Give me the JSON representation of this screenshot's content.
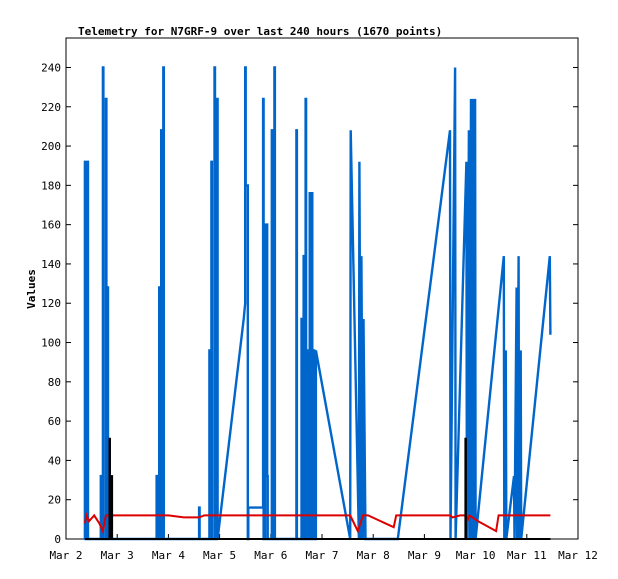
{
  "chart_data": {
    "type": "line",
    "title": "Telemetry for N7GRF-9 over last 240 hours (1670 points)",
    "xlabel": "",
    "ylabel": "Values",
    "x_unit": "day of March",
    "xlim": [
      2,
      12
    ],
    "ylim": [
      0,
      255
    ],
    "xticks": [
      {
        "v": 2,
        "label": "Mar 2"
      },
      {
        "v": 3,
        "label": "Mar 3"
      },
      {
        "v": 4,
        "label": "Mar 4"
      },
      {
        "v": 5,
        "label": "Mar 5"
      },
      {
        "v": 6,
        "label": "Mar 6"
      },
      {
        "v": 7,
        "label": "Mar 7"
      },
      {
        "v": 8,
        "label": "Mar 8"
      },
      {
        "v": 9,
        "label": "Mar 9"
      },
      {
        "v": 10,
        "label": "Mar 10"
      },
      {
        "v": 11,
        "label": "Mar 11"
      },
      {
        "v": 12,
        "label": "Mar 12"
      }
    ],
    "yticks": [
      0,
      20,
      40,
      60,
      80,
      100,
      120,
      140,
      160,
      180,
      200,
      220,
      240
    ],
    "grid": false,
    "legend": "none",
    "colors": {
      "series_blue": "#0066cc",
      "series_red": "#dd0000",
      "series_black": "#000000"
    },
    "series": [
      {
        "color": "#0066cc",
        "x": [
          2.37,
          2.37,
          2.38,
          2.38,
          2.42,
          2.42,
          2.43,
          2.43,
          2.68,
          2.68,
          2.69,
          2.69,
          2.72,
          2.72,
          2.73,
          2.73,
          2.78,
          2.78,
          2.79,
          2.79,
          2.81,
          2.81,
          2.82,
          2.82,
          3.77,
          3.77,
          3.78,
          3.78,
          3.82,
          3.82,
          3.83,
          3.83,
          3.86,
          3.86,
          3.87,
          3.87,
          3.9,
          3.9,
          3.91,
          3.91,
          4.6,
          4.6,
          4.61,
          4.61,
          4.8,
          4.8,
          4.81,
          4.81,
          4.84,
          4.84,
          4.85,
          4.85,
          4.9,
          4.9,
          4.91,
          4.91,
          4.95,
          4.95,
          4.96,
          4.96,
          5.47,
          5.5,
          5.5,
          5.51,
          5.51,
          5.55,
          5.55,
          5.56,
          5.56,
          5.85,
          5.85,
          5.86,
          5.86,
          5.89,
          5.89,
          5.9,
          5.9,
          5.93,
          5.93,
          5.94,
          5.94,
          6.02,
          6.02,
          6.03,
          6.03,
          6.07,
          6.07,
          6.08,
          6.08,
          6.5,
          6.5,
          6.51,
          6.51,
          6.6,
          6.6,
          6.61,
          6.61,
          6.64,
          6.64,
          6.65,
          6.65,
          6.68,
          6.68,
          6.69,
          6.69,
          6.72,
          6.72,
          6.73,
          6.73,
          6.76,
          6.76,
          6.77,
          6.77,
          6.8,
          6.8,
          6.81,
          6.81,
          6.84,
          6.84,
          6.85,
          6.85,
          6.88,
          6.88,
          7.55,
          7.55,
          7.56,
          7.56,
          7.72,
          7.72,
          7.73,
          7.73,
          7.76,
          7.76,
          7.77,
          7.77,
          7.8,
          7.8,
          7.81,
          7.81,
          7.85,
          7.85,
          8.48,
          8.48,
          9.5,
          9.5,
          9.51,
          9.51,
          9.6,
          9.6,
          9.61,
          9.61,
          9.82,
          9.82,
          9.83,
          9.83,
          9.87,
          9.87,
          9.88,
          9.88,
          9.91,
          9.91,
          9.92,
          9.92,
          9.95,
          9.95,
          9.96,
          9.96,
          9.99,
          9.99,
          10.0,
          10.0,
          10.55,
          10.55,
          10.56,
          10.56,
          10.59,
          10.59,
          10.6,
          10.6,
          10.75,
          10.75,
          10.76,
          10.76,
          10.8,
          10.8,
          10.81,
          10.81,
          10.84,
          10.84,
          10.85,
          10.85,
          10.88,
          10.88,
          10.89,
          10.89,
          11.45,
          11.45,
          11.46
        ],
        "y": [
          0,
          192,
          192,
          0,
          0,
          192,
          192,
          0,
          0,
          32,
          32,
          0,
          0,
          240,
          240,
          0,
          0,
          224,
          224,
          0,
          0,
          128,
          128,
          0,
          0,
          32,
          32,
          0,
          0,
          128,
          128,
          0,
          0,
          208,
          208,
          0,
          0,
          240,
          240,
          0,
          0,
          16,
          16,
          0,
          0,
          96,
          96,
          0,
          0,
          192,
          192,
          0,
          0,
          240,
          240,
          0,
          0,
          224,
          224,
          0,
          112,
          120,
          240,
          240,
          180,
          180,
          0,
          0,
          16,
          16,
          224,
          224,
          0,
          0,
          144,
          144,
          160,
          160,
          32,
          32,
          0,
          0,
          208,
          208,
          0,
          0,
          240,
          240,
          0,
          0,
          208,
          208,
          0,
          0,
          112,
          112,
          0,
          0,
          144,
          144,
          0,
          0,
          224,
          224,
          0,
          0,
          96,
          96,
          0,
          0,
          176,
          176,
          0,
          0,
          176,
          176,
          0,
          0,
          96,
          96,
          0,
          0,
          96,
          0,
          0,
          208,
          208,
          0,
          0,
          192,
          192,
          0,
          0,
          144,
          144,
          0,
          0,
          112,
          112,
          0,
          0,
          0,
          0,
          208,
          208,
          0,
          0,
          240,
          240,
          0,
          0,
          192,
          192,
          0,
          0,
          208,
          208,
          0,
          0,
          224,
          224,
          0,
          0,
          224,
          224,
          0,
          0,
          224,
          224,
          0,
          0,
          144,
          144,
          0,
          0,
          96,
          96,
          0,
          0,
          32,
          32,
          0,
          0,
          128,
          128,
          0,
          0,
          144,
          144,
          0,
          0,
          96,
          96,
          0,
          0,
          144,
          144,
          104
        ]
      },
      {
        "color": "#dd0000",
        "x": [
          2.37,
          2.4,
          2.45,
          2.55,
          2.65,
          2.72,
          2.78,
          3.0,
          3.5,
          3.9,
          4.0,
          4.3,
          4.6,
          4.7,
          4.9,
          5.1,
          5.4,
          5.5,
          5.9,
          6.0,
          6.5,
          7.0,
          7.55,
          7.7,
          7.8,
          7.9,
          8.4,
          8.45,
          9.0,
          9.5,
          9.55,
          9.7,
          9.8,
          9.85,
          9.88,
          10.05,
          10.4,
          10.45,
          10.8,
          11.0,
          11.46
        ],
        "y": [
          8,
          12,
          9,
          12,
          8,
          4,
          12,
          12,
          12,
          12,
          12,
          11,
          11,
          12,
          12,
          12,
          12,
          12,
          12,
          12,
          12,
          12,
          12,
          4,
          12,
          12,
          6,
          12,
          12,
          12,
          11,
          12,
          12,
          10,
          12,
          9,
          4,
          12,
          12,
          12,
          12
        ]
      },
      {
        "color": "#000000",
        "x": [
          2.37,
          2.85,
          2.85,
          2.86,
          2.86,
          2.87,
          2.87,
          2.9,
          2.9,
          2.91,
          2.91,
          9.8,
          9.8,
          9.81,
          9.81,
          11.46
        ],
        "y": [
          0,
          0,
          51,
          51,
          0,
          0,
          32,
          32,
          0,
          0,
          0,
          0,
          51,
          51,
          0,
          0
        ]
      }
    ]
  }
}
